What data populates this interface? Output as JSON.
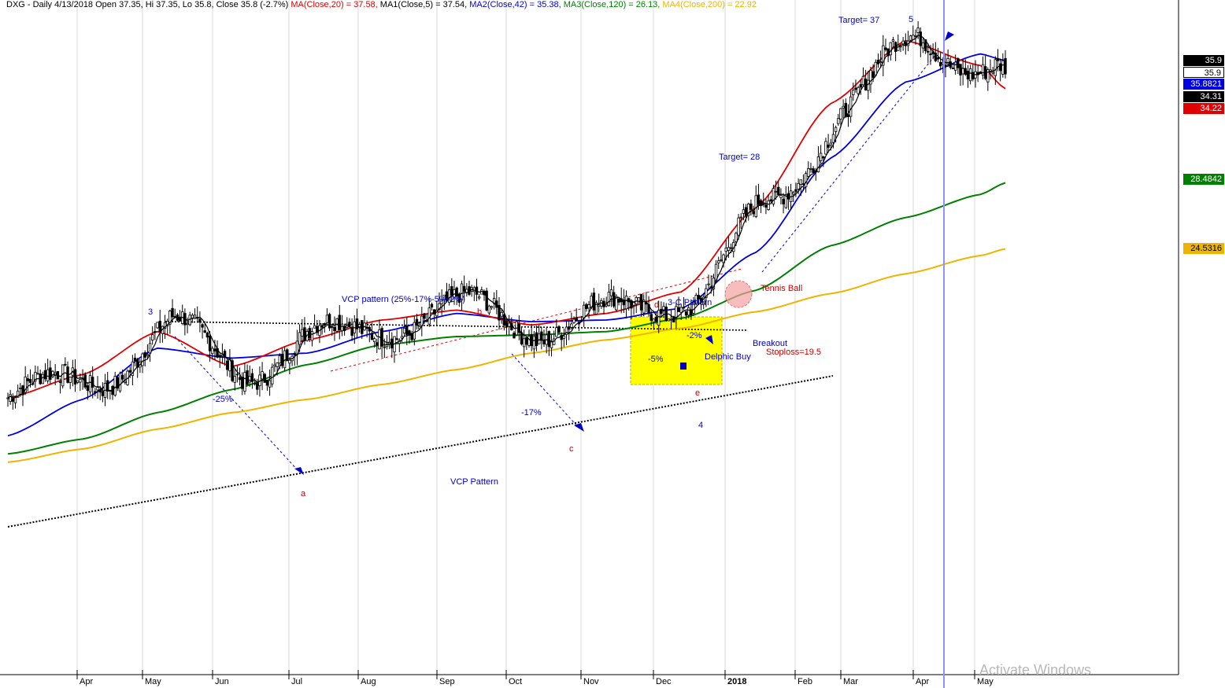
{
  "header": {
    "title": "DXG - Daily 4/13/2018 Open 37.35, Hi 37.35, Lo 35.8, Close 35.8 (-2.7%)",
    "ma20": "MA(Close,20) = 37.58,",
    "ma1": "MA1(Close,5) = 37.54,",
    "ma2": "MA2(Close,42) = 35.38,",
    "ma3": "MA3(Close,120) = 26.13,",
    "ma4": "MA4(Close,200) = 22.92"
  },
  "colors": {
    "ma20": "#e00000",
    "ma1": "#000000",
    "ma2": "#0000e0",
    "ma3": "#008000",
    "ma4": "#f0b400",
    "highlight_box": "#ffff00",
    "label_blue": "#0000cc",
    "label_red": "#cc0000",
    "cursor_line": "#9090ff"
  },
  "price_labels": [
    {
      "text": "35.9",
      "bg": "#000000",
      "fg": "#ffffff"
    },
    {
      "text": "35.9",
      "bg": "#ffffff",
      "fg": "#000000"
    },
    {
      "text": "35.8821",
      "bg": "#0000e0",
      "fg": "#ffffff"
    },
    {
      "text": "34.31",
      "bg": "#000000",
      "fg": "#ffffff"
    },
    {
      "text": "34.22",
      "bg": "#e00000",
      "fg": "#ffffff"
    },
    {
      "text": "28.4842",
      "bg": "#008000",
      "fg": "#ffffff"
    },
    {
      "text": "24.5316",
      "bg": "#f0b400",
      "fg": "#000000"
    }
  ],
  "annotations": {
    "wave3": "3",
    "vcp_pattern_top": "VCP pattern (25%-17%-5%-2%)",
    "wave_b": "b",
    "wave_d": "d",
    "three_c": "3-C Pattern",
    "tennis_ball": "Tennis Ball",
    "target28": "Target= 28",
    "target37": "Target= 37",
    "wave5": "5",
    "pct25": "-25%",
    "pct17": "-17%",
    "pct5": "-5%",
    "pct2": "-2%",
    "breakout": "Breakout",
    "delphic": "Delphic Buy",
    "stoploss": "Stoploss=19.5",
    "wave_e": "e",
    "wave4": "4",
    "wave_c": "c",
    "wave_a": "a",
    "vcp_pattern_bottom": "VCP Pattern"
  },
  "watermark": "Activate Windows",
  "chart_data": {
    "type": "line",
    "title": "DXG - Daily 4/13/2018",
    "ylabel": "",
    "xlabel": "",
    "x_ticks": [
      "Apr",
      "May",
      "Jun",
      "Jul",
      "Aug",
      "Sep",
      "Oct",
      "Nov",
      "Dec",
      "2018",
      "Feb",
      "Mar",
      "Apr",
      "May"
    ],
    "series": [
      {
        "name": "MA(Close,20)",
        "x": [
          0,
          30,
          60,
          90,
          120,
          150,
          180,
          210,
          240,
          270,
          300,
          330,
          360,
          390,
          400
        ],
        "y": [
          15.5,
          16.9,
          19.5,
          17.4,
          19.0,
          20.2,
          20.8,
          19.9,
          20.6,
          21.9,
          27.0,
          33.3,
          37.1,
          35.6,
          34.2
        ]
      },
      {
        "name": "MA2(Close,42)",
        "x": [
          0,
          30,
          60,
          90,
          120,
          150,
          180,
          210,
          240,
          270,
          300,
          330,
          360,
          390,
          400
        ],
        "y": [
          13.2,
          15.4,
          18.5,
          17.9,
          18.2,
          19.5,
          20.6,
          20.1,
          20.2,
          20.9,
          24.3,
          30.0,
          34.6,
          36.3,
          35.9
        ]
      },
      {
        "name": "MA3(Close,120)",
        "x": [
          0,
          30,
          60,
          90,
          120,
          150,
          180,
          210,
          240,
          270,
          300,
          330,
          360,
          390,
          400
        ],
        "y": [
          12.1,
          13.0,
          14.6,
          16.0,
          17.5,
          18.7,
          19.2,
          19.3,
          19.5,
          20.3,
          22.0,
          24.7,
          26.4,
          27.8,
          28.5
        ]
      },
      {
        "name": "MA4(Close,200)",
        "x": [
          0,
          30,
          60,
          90,
          120,
          150,
          180,
          210,
          240,
          270,
          300,
          330,
          360,
          390,
          400
        ],
        "y": [
          11.6,
          12.4,
          13.6,
          14.6,
          15.4,
          16.3,
          17.2,
          18.2,
          19.0,
          19.7,
          20.7,
          21.8,
          23.0,
          24.1,
          24.5
        ]
      }
    ]
  }
}
